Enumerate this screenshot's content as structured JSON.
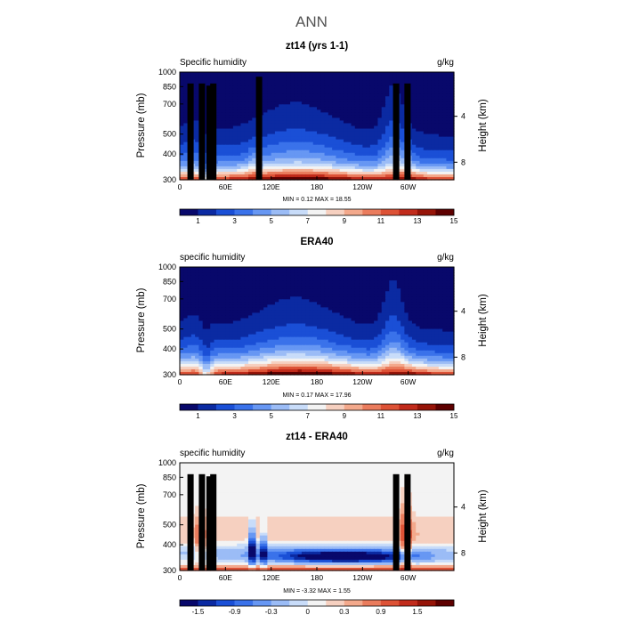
{
  "page": {
    "main_title": "ANN"
  },
  "colors": {
    "abs_palette": [
      "#08086b",
      "#0b2aa2",
      "#1a4fd6",
      "#3a72ea",
      "#6797f3",
      "#9bbcf6",
      "#c8dcf9",
      "#f3f3f3",
      "#f6d0c0",
      "#f3a98c",
      "#ea7c5d",
      "#dd5236",
      "#c12b1b",
      "#961408",
      "#5e0000"
    ],
    "diff_palette": [
      "#08086b",
      "#0b2aa2",
      "#1a4fd6",
      "#3a72ea",
      "#6797f3",
      "#9bbcf6",
      "#c8dcf9",
      "#f3f3f3",
      "#f6d0c0",
      "#f3a98c",
      "#ea7c5d",
      "#dd5236",
      "#c12b1b",
      "#961408",
      "#5e0000"
    ]
  },
  "chart_data": [
    {
      "type": "heatmap",
      "title": "zt14 (yrs 1-1)",
      "variable_label": "Specific humidity",
      "units": "g/kg",
      "ylabel": "Pressure (mb)",
      "ylabel_right": "Height (km)",
      "yticks": [
        "300",
        "400",
        "500",
        "700",
        "850",
        "1000"
      ],
      "ytick_values": [
        300,
        400,
        500,
        700,
        850,
        1000
      ],
      "height_ticks": [
        "8",
        "4"
      ],
      "height_tick_pressures": [
        365,
        610
      ],
      "xticks": [
        "0",
        "60E",
        "120E",
        "180",
        "120W",
        "60W"
      ],
      "xtick_lons": [
        0,
        60,
        120,
        180,
        240,
        300
      ],
      "xlim": [
        0,
        360
      ],
      "ylim": [
        1000,
        300
      ],
      "min_max_text": "MIN =    0.12   MAX =   18.55",
      "min": 0.12,
      "max": 18.55,
      "colorbar_labels": [
        "1",
        "3",
        "5",
        "7",
        "9",
        "11",
        "13",
        "15"
      ],
      "colorbar_levels": [
        0,
        1,
        2,
        3,
        4,
        5,
        6,
        7,
        8,
        9,
        10,
        11,
        12,
        13,
        14,
        15
      ],
      "field": "model",
      "topography": [
        [
          10,
          880
        ],
        [
          25,
          880
        ],
        [
          35,
          860
        ],
        [
          40,
          880
        ],
        [
          100,
          950
        ],
        [
          280,
          880
        ],
        [
          295,
          880
        ]
      ]
    },
    {
      "type": "heatmap",
      "title": "ERA40",
      "variable_label": "specific humidity",
      "units": "g/kg",
      "ylabel": "Pressure (mb)",
      "ylabel_right": "Height (km)",
      "yticks": [
        "300",
        "400",
        "500",
        "700",
        "850",
        "1000"
      ],
      "ytick_values": [
        300,
        400,
        500,
        700,
        850,
        1000
      ],
      "height_ticks": [
        "8",
        "4"
      ],
      "height_tick_pressures": [
        365,
        610
      ],
      "xticks": [
        "0",
        "60E",
        "120E",
        "180",
        "120W",
        "60W"
      ],
      "xtick_lons": [
        0,
        60,
        120,
        180,
        240,
        300
      ],
      "xlim": [
        0,
        360
      ],
      "ylim": [
        1000,
        300
      ],
      "min_max_text": "MIN =    0.17   MAX =   17.96",
      "min": 0.17,
      "max": 17.96,
      "colorbar_labels": [
        "1",
        "3",
        "5",
        "7",
        "9",
        "11",
        "13",
        "15"
      ],
      "colorbar_levels": [
        0,
        1,
        2,
        3,
        4,
        5,
        6,
        7,
        8,
        9,
        10,
        11,
        12,
        13,
        14,
        15
      ],
      "field": "obs",
      "topography": []
    },
    {
      "type": "heatmap",
      "title": "zt14 - ERA40",
      "variable_label": "specific humidity",
      "units": "g/kg",
      "ylabel": "Pressure (mb)",
      "ylabel_right": "Height (km)",
      "yticks": [
        "300",
        "400",
        "500",
        "700",
        "850",
        "1000"
      ],
      "ytick_values": [
        300,
        400,
        500,
        700,
        850,
        1000
      ],
      "height_ticks": [
        "8",
        "4"
      ],
      "height_tick_pressures": [
        365,
        610
      ],
      "xticks": [
        "0",
        "60E",
        "120E",
        "180",
        "120W",
        "60W"
      ],
      "xtick_lons": [
        0,
        60,
        120,
        180,
        240,
        300
      ],
      "xlim": [
        0,
        360
      ],
      "ylim": [
        1000,
        300
      ],
      "min_max_text": "MIN =   -3.32   MAX =    1.55",
      "min": -3.32,
      "max": 1.55,
      "colorbar_labels": [
        "-1.5",
        "-0.9",
        "-0.3",
        "0",
        "0.3",
        "0.9",
        "1.5"
      ],
      "colorbar_levels": [
        -2.1,
        -1.8,
        -1.5,
        -1.2,
        -0.9,
        -0.6,
        -0.3,
        -0.1,
        0.1,
        0.3,
        0.6,
        0.9,
        1.2,
        1.5,
        1.8,
        2.1
      ],
      "field": "diff",
      "topography": [
        [
          10,
          880
        ],
        [
          25,
          880
        ],
        [
          35,
          860
        ],
        [
          40,
          880
        ],
        [
          280,
          880
        ],
        [
          295,
          880
        ]
      ]
    }
  ]
}
